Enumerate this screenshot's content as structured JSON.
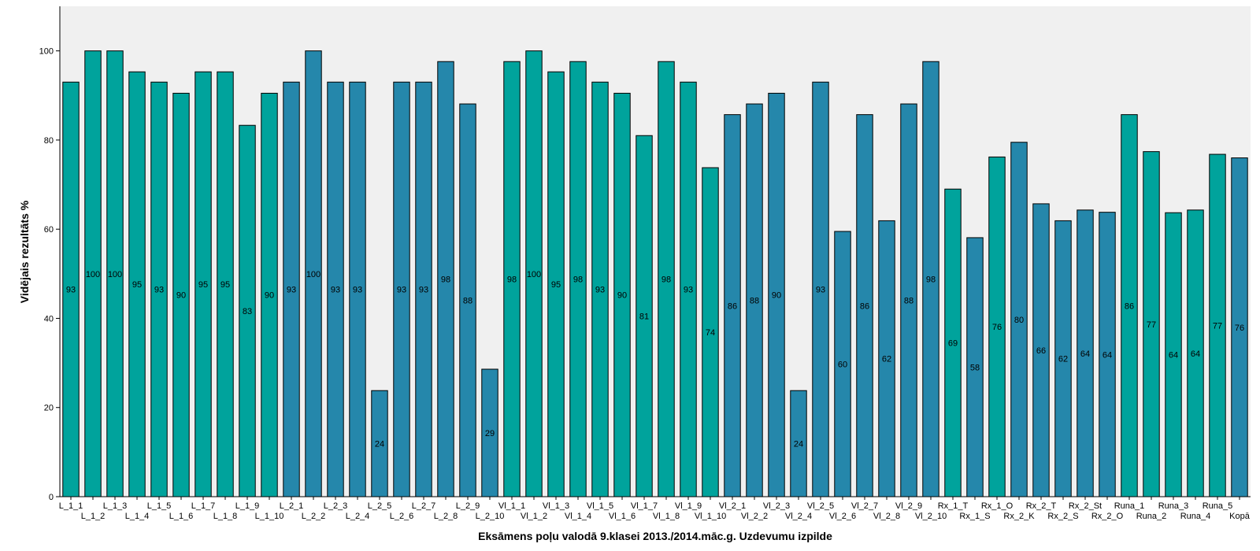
{
  "chart_data": {
    "type": "bar",
    "title": "",
    "xlabel": "Eksāmens poļu valodā 9.klasei 2013./2014.māc.g. Uzdevumu izpilde",
    "ylabel": "Vidējais rezultāts %",
    "ylim": [
      0,
      110
    ],
    "yticks": [
      0,
      20,
      40,
      60,
      80,
      100
    ],
    "grid": false,
    "legend": "none",
    "colors": {
      "teal": "#00a39c",
      "blue": "#2587ab",
      "plot_bg": "#f0f0f0",
      "edge": "#000000"
    },
    "categories": [
      "L_1_1",
      "L_1_2",
      "L_1_3",
      "L_1_4",
      "L_1_5",
      "L_1_6",
      "L_1_7",
      "L_1_8",
      "L_1_9",
      "L_1_10",
      "L_2_1",
      "L_2_2",
      "L_2_3",
      "L_2_4",
      "L_2_5",
      "L_2_6",
      "L_2_7",
      "L_2_8",
      "L_2_9",
      "L_2_10",
      "Vl_1_1",
      "Vl_1_2",
      "Vl_1_3",
      "Vl_1_4",
      "Vl_1_5",
      "Vl_1_6",
      "Vl_1_7",
      "Vl_1_8",
      "Vl_1_9",
      "Vl_1_10",
      "Vl_2_1",
      "Vl_2_2",
      "Vl_2_3",
      "Vl_2_4",
      "Vl_2_5",
      "Vl_2_6",
      "Vl_2_7",
      "Vl_2_8",
      "Vl_2_9",
      "Vl_2_10",
      "Rx_1_T",
      "Rx_1_S",
      "Rx_1_O",
      "Rx_2_K",
      "Rx_2_T",
      "Rx_2_S",
      "Rx_2_St",
      "Rx_2_O",
      "Runa_1",
      "Runa_2",
      "Runa_3",
      "Runa_4",
      "Runa_5",
      "Kopā"
    ],
    "values": [
      93,
      100,
      100,
      95.3,
      93,
      90.5,
      95.3,
      95.3,
      83.3,
      90.5,
      93,
      100,
      93,
      93,
      23.8,
      93,
      93,
      97.6,
      88.1,
      28.6,
      97.6,
      100,
      95.3,
      97.6,
      93,
      90.5,
      81,
      97.6,
      93,
      73.8,
      85.7,
      88.1,
      90.5,
      23.8,
      93,
      59.5,
      85.7,
      61.9,
      88.1,
      97.6,
      69,
      58.1,
      76.2,
      79.5,
      65.7,
      61.9,
      64.3,
      63.8,
      85.7,
      77.4,
      63.7,
      64.3,
      76.8,
      76
    ],
    "data_labels": [
      "93",
      "100",
      "100",
      "95",
      "93",
      "90",
      "95",
      "95",
      "83",
      "90",
      "93",
      "100",
      "93",
      "93",
      "24",
      "93",
      "93",
      "98",
      "88",
      "29",
      "98",
      "100",
      "95",
      "98",
      "93",
      "90",
      "81",
      "98",
      "93",
      "74",
      "86",
      "88",
      "90",
      "24",
      "93",
      "60",
      "86",
      "62",
      "88",
      "98",
      "69",
      "58",
      "76",
      "80",
      "66",
      "62",
      "64",
      "64",
      "86",
      "77",
      "64",
      "64",
      "77",
      "76"
    ],
    "bar_colors": [
      "teal",
      "teal",
      "teal",
      "teal",
      "teal",
      "teal",
      "teal",
      "teal",
      "teal",
      "teal",
      "blue",
      "blue",
      "blue",
      "blue",
      "blue",
      "blue",
      "blue",
      "blue",
      "blue",
      "blue",
      "teal",
      "teal",
      "teal",
      "teal",
      "teal",
      "teal",
      "teal",
      "teal",
      "teal",
      "teal",
      "blue",
      "blue",
      "blue",
      "blue",
      "blue",
      "blue",
      "blue",
      "blue",
      "blue",
      "blue",
      "teal",
      "blue",
      "teal",
      "blue",
      "blue",
      "blue",
      "blue",
      "blue",
      "teal",
      "teal",
      "teal",
      "teal",
      "teal",
      "blue"
    ]
  }
}
